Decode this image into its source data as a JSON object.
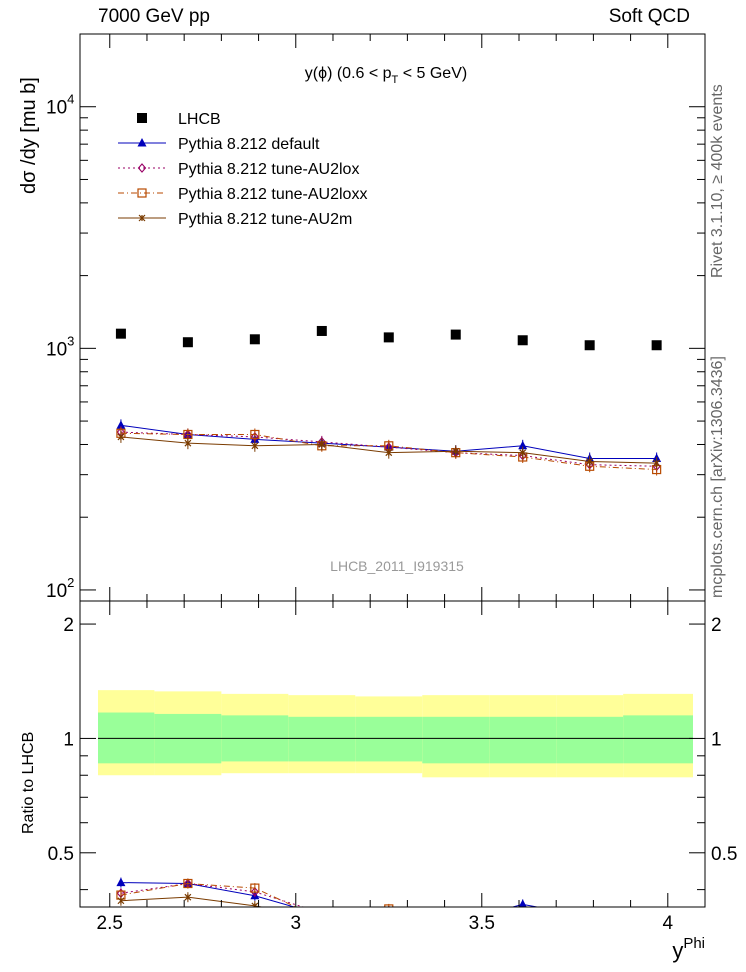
{
  "header": {
    "left": "7000 GeV pp",
    "right": "Soft QCD"
  },
  "side_text": {
    "rivet": "Rivet 3.1.10, ≥ 400k events",
    "mcplots": "mcplots.cern.ch [arXiv:1306.3436]"
  },
  "chart_data": {
    "type": "line",
    "title_main": "y(ϕ) (0.6 < p",
    "title_sub": "T",
    "title_tail": " < 5 GeV)",
    "watermark": "LHCB_2011_I919315",
    "ylabel": "dσ /dy [mu b]",
    "ratio_ylabel": "Ratio to LHCB",
    "xlabel_main": "y",
    "xlabel_sup": "Phi",
    "xlim": [
      2.42,
      4.1
    ],
    "ylim": [
      90,
      20000
    ],
    "ratio_ylim": [
      0.36,
      2.3
    ],
    "x": [
      2.53,
      2.71,
      2.89,
      3.07,
      3.25,
      3.43,
      3.61,
      3.79,
      3.97
    ],
    "x_ticks": [
      "2.5",
      "3",
      "3.5",
      "4"
    ],
    "x_tick_values": [
      2.5,
      3.0,
      3.5,
      4.0
    ],
    "y_ticks": [
      "10",
      "10",
      "10"
    ],
    "y_tick_exps": [
      "2",
      "3",
      "4"
    ],
    "y_tick_values": [
      100,
      1000,
      10000
    ],
    "ratio_ticks": [
      "0.5",
      "1",
      "2"
    ],
    "ratio_tick_values": [
      0.5,
      1.0,
      2.0
    ],
    "bands": {
      "inner_color": "#99ff99",
      "outer_color": "#ffff99",
      "edges": [
        2.42,
        2.62,
        2.8,
        2.98,
        3.16,
        3.34,
        3.52,
        3.7,
        3.88,
        4.06
      ],
      "inner_lo": [
        0.86,
        0.86,
        0.87,
        0.87,
        0.87,
        0.86,
        0.86,
        0.86,
        0.86
      ],
      "inner_hi": [
        1.17,
        1.16,
        1.15,
        1.14,
        1.14,
        1.14,
        1.14,
        1.14,
        1.15
      ],
      "outer_lo": [
        0.8,
        0.8,
        0.81,
        0.81,
        0.81,
        0.79,
        0.79,
        0.79,
        0.79
      ],
      "outer_hi": [
        1.34,
        1.33,
        1.31,
        1.3,
        1.29,
        1.3,
        1.3,
        1.3,
        1.31
      ]
    },
    "series": [
      {
        "name": "LHCB",
        "color": "#000000",
        "marker": "square",
        "dash": "none",
        "values": [
          1150,
          1060,
          1090,
          1180,
          1110,
          1140,
          1080,
          1030,
          1030
        ]
      },
      {
        "name": "Pythia 8.212 default",
        "color": "#0000bb",
        "marker": "triangle",
        "dash": "none",
        "values": [
          480,
          440,
          420,
          405,
          390,
          375,
          395,
          350,
          350
        ]
      },
      {
        "name": "Pythia 8.212 tune-AU2lox",
        "color": "#990066",
        "marker": "diamond",
        "dash": "2,3",
        "values": [
          450,
          440,
          430,
          410,
          390,
          370,
          360,
          330,
          325
        ]
      },
      {
        "name": "Pythia 8.212 tune-AU2loxx",
        "color": "#b84a00",
        "marker": "opensquare",
        "dash": "6,3,1,3",
        "values": [
          445,
          440,
          440,
          395,
          395,
          370,
          355,
          325,
          315
        ]
      },
      {
        "name": "Pythia 8.212 tune-AU2m",
        "color": "#7a3b00",
        "marker": "star",
        "dash": "none",
        "values": [
          430,
          405,
          395,
          400,
          370,
          375,
          370,
          340,
          335
        ]
      }
    ]
  }
}
